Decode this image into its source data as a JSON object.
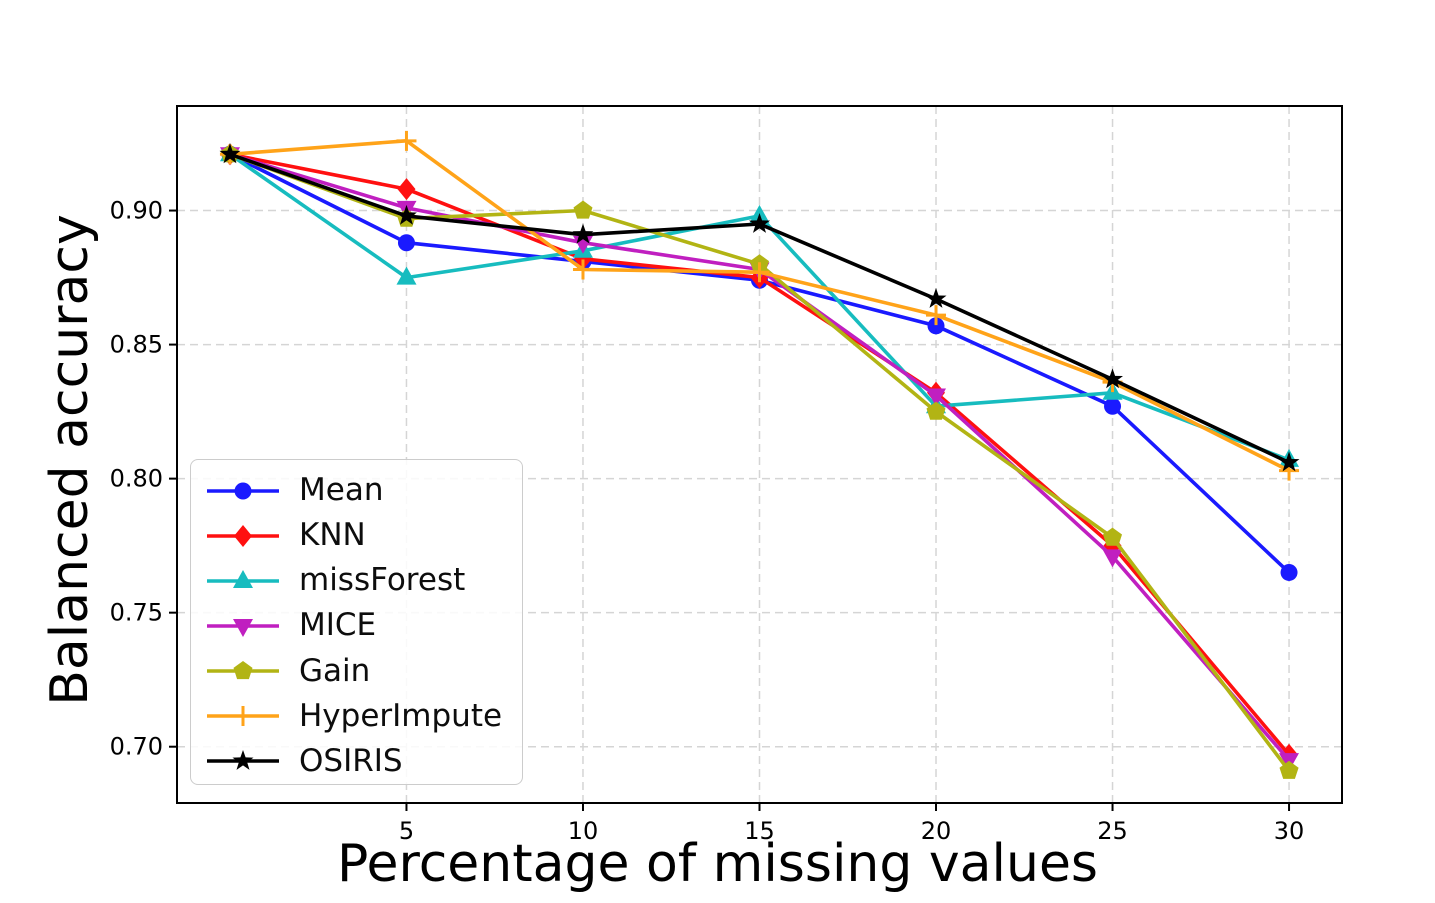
{
  "chart_data": {
    "type": "line",
    "title": "",
    "xlabel": "Percentage of missing values",
    "ylabel": "Balanced accuracy",
    "x": [
      0,
      5,
      10,
      15,
      20,
      25,
      30
    ],
    "xticks": [
      5,
      10,
      15,
      20,
      25,
      30
    ],
    "xtick_labels": [
      "5",
      "10",
      "15",
      "20",
      "25",
      "30"
    ],
    "yticks": [
      0.7,
      0.75,
      0.8,
      0.85,
      0.9
    ],
    "ytick_labels": [
      "0.70",
      "0.75",
      "0.80",
      "0.85",
      "0.90"
    ],
    "xlim": [
      -1.5,
      31.5
    ],
    "ylim": [
      0.679,
      0.939
    ],
    "grid": true,
    "grid_style": "dashed",
    "grid_color": "#d5d5d5",
    "legend_position": "lower-left-inside",
    "series": [
      {
        "name": "Mean",
        "color": "#1a1aff",
        "marker": "circle",
        "values": [
          0.921,
          0.888,
          0.881,
          0.874,
          0.857,
          0.827,
          0.765
        ]
      },
      {
        "name": "KNN",
        "color": "#ff1010",
        "marker": "diamond",
        "values": [
          0.921,
          0.908,
          0.882,
          0.875,
          0.832,
          0.775,
          0.697
        ]
      },
      {
        "name": "missForest",
        "color": "#17bcbf",
        "marker": "triangle-up",
        "values": [
          0.921,
          0.875,
          0.885,
          0.898,
          0.827,
          0.832,
          0.807
        ]
      },
      {
        "name": "MICE",
        "color": "#c01fc0",
        "marker": "triangle-down",
        "values": [
          0.921,
          0.901,
          0.888,
          0.878,
          0.831,
          0.771,
          0.695
        ]
      },
      {
        "name": "Gain",
        "color": "#b2b414",
        "marker": "pentagon",
        "values": [
          0.921,
          0.897,
          0.9,
          0.88,
          0.825,
          0.778,
          0.691
        ]
      },
      {
        "name": "HyperImpute",
        "color": "#ffa319",
        "marker": "plus",
        "values": [
          0.921,
          0.926,
          0.878,
          0.877,
          0.861,
          0.836,
          0.803
        ]
      },
      {
        "name": "OSIRIS",
        "color": "#000000",
        "marker": "star",
        "values": [
          0.921,
          0.898,
          0.891,
          0.895,
          0.867,
          0.837,
          0.806
        ]
      }
    ]
  }
}
